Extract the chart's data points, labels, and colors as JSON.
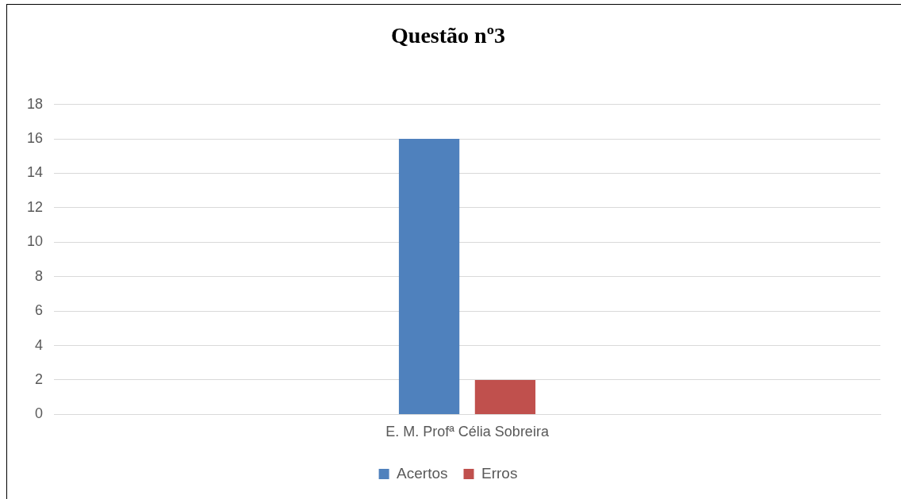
{
  "chart_data": {
    "type": "bar",
    "title": "Questão nº3",
    "categories": [
      "E. M. Profª Célia Sobreira"
    ],
    "series": [
      {
        "name": "Acertos",
        "color": "#4f81bd",
        "values": [
          16
        ]
      },
      {
        "name": "Erros",
        "color": "#c0504d",
        "values": [
          2
        ]
      }
    ],
    "ylim": [
      0,
      18
    ],
    "yticks": [
      0,
      2,
      4,
      6,
      8,
      10,
      12,
      14,
      16,
      18
    ],
    "grid": "y",
    "legend": "bottom"
  }
}
